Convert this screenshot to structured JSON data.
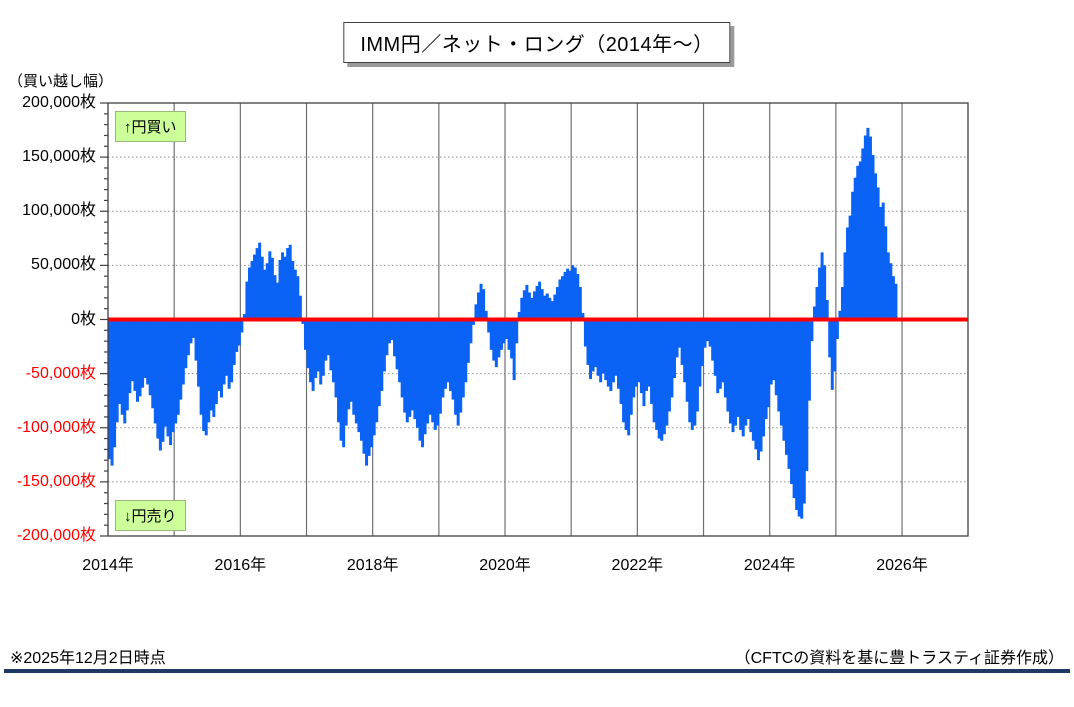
{
  "title": "IMM円／ネット・ロング（2014年～）",
  "y_axis": {
    "unit_label": "（買い越し幅）",
    "ticks": [
      {
        "value": 200000,
        "label": "200,000枚"
      },
      {
        "value": 150000,
        "label": "150,000枚"
      },
      {
        "value": 100000,
        "label": "100,000枚"
      },
      {
        "value": 50000,
        "label": "50,000枚"
      },
      {
        "value": 0,
        "label": "0枚"
      },
      {
        "value": -50000,
        "label": "-50,000枚"
      },
      {
        "value": -100000,
        "label": "-100,000枚"
      },
      {
        "value": -150000,
        "label": "-150,000枚"
      },
      {
        "value": -200000,
        "label": "-200,000枚"
      }
    ]
  },
  "x_axis": {
    "ticks": [
      {
        "year": 2014,
        "label": "2014年"
      },
      {
        "year": 2016,
        "label": "2016年"
      },
      {
        "year": 2018,
        "label": "2018年"
      },
      {
        "year": 2020,
        "label": "2020年"
      },
      {
        "year": 2022,
        "label": "2022年"
      },
      {
        "year": 2024,
        "label": "2024年"
      },
      {
        "year": 2026,
        "label": "2026年"
      }
    ]
  },
  "annotations": {
    "buy": "↑円買い",
    "sell": "↓円売り"
  },
  "footer": {
    "as_of": "※2025年12月2日時点",
    "source": "（CFTCの資料を基に豊トラスティ証券作成）"
  },
  "colors": {
    "bar": "#0b63f5",
    "zero_line": "#ff0000",
    "negative_tick_label": "#ff0000",
    "positive_tick_label": "#000000",
    "vertical_grid": "#707070",
    "horizontal_grid": "#909090",
    "plot_border": "#404040",
    "annotation_bg": "#ccff99",
    "footer_rule": "#1f3864"
  },
  "chart_data": {
    "type": "bar",
    "title": "IMM円／ネット・ロング（2014年～）",
    "xlabel": "",
    "ylabel": "（買い越し幅）",
    "unit": "枚",
    "ylim": [
      -200000,
      200000
    ],
    "ytick_step": 50000,
    "x_range_years": [
      2014,
      2027
    ],
    "grid": "horizontal dotted at ±50k/±100k/±150k, vertical solid at each year",
    "legend_position": "none",
    "zero_line": 0,
    "sampling": "biweekly estimates, 26 points per year, values in thousands of 枚 (contracts)",
    "year_order": [
      "2014",
      "2015",
      "2016",
      "2017",
      "2018",
      "2019",
      "2020",
      "2021",
      "2022",
      "2023",
      "2024",
      "2025"
    ],
    "values_thousands": {
      "2014": [
        -129,
        -135,
        -118,
        -95,
        -78,
        -88,
        -96,
        -84,
        -68,
        -57,
        -66,
        -76,
        -71,
        -63,
        -54,
        -60,
        -70,
        -82,
        -96,
        -110,
        -121,
        -113,
        -99,
        -108,
        -116,
        -104
      ],
      "2015": [
        -96,
        -88,
        -74,
        -60,
        -45,
        -33,
        -22,
        -17,
        -38,
        -62,
        -88,
        -103,
        -107,
        -95,
        -84,
        -90,
        -78,
        -66,
        -72,
        -60,
        -52,
        -64,
        -58,
        -42,
        -30,
        -24
      ],
      "2016": [
        -12,
        5,
        35,
        48,
        54,
        60,
        66,
        71,
        58,
        46,
        52,
        63,
        57,
        41,
        34,
        55,
        62,
        58,
        66,
        69,
        54,
        46,
        40,
        22,
        -4,
        -28
      ],
      "2017": [
        -45,
        -58,
        -66,
        -54,
        -48,
        -60,
        -52,
        -38,
        -33,
        -47,
        -58,
        -72,
        -95,
        -112,
        -118,
        -98,
        -83,
        -76,
        -88,
        -96,
        -104,
        -112,
        -124,
        -135,
        -126,
        -118
      ],
      "2018": [
        -107,
        -95,
        -80,
        -66,
        -48,
        -33,
        -22,
        -19,
        -34,
        -46,
        -58,
        -72,
        -86,
        -95,
        -90,
        -84,
        -92,
        -100,
        -112,
        -118,
        -106,
        -96,
        -88,
        -95,
        -102,
        -98
      ],
      "2019": [
        -87,
        -72,
        -64,
        -58,
        -66,
        -74,
        -88,
        -98,
        -86,
        -72,
        -58,
        -40,
        -22,
        -5,
        14,
        25,
        33,
        28,
        8,
        -12,
        -28,
        -38,
        -44,
        -35,
        -28,
        -22
      ],
      "2020": [
        -18,
        -28,
        -36,
        -56,
        -22,
        7,
        20,
        27,
        32,
        25,
        20,
        26,
        31,
        35,
        28,
        22,
        24,
        20,
        17,
        23,
        30,
        37,
        40,
        44,
        47,
        45
      ],
      "2021": [
        50,
        48,
        42,
        30,
        6,
        -25,
        -42,
        -55,
        -48,
        -44,
        -52,
        -58,
        -50,
        -56,
        -62,
        -66,
        -58,
        -52,
        -64,
        -78,
        -95,
        -102,
        -107,
        -88,
        -72,
        -62
      ],
      "2022": [
        -58,
        -68,
        -80,
        -66,
        -62,
        -78,
        -95,
        -102,
        -110,
        -112,
        -106,
        -98,
        -85,
        -72,
        -54,
        -35,
        -26,
        -42,
        -58,
        -76,
        -95,
        -102,
        -98,
        -85,
        -62,
        -43
      ],
      "2023": [
        -26,
        -20,
        -25,
        -38,
        -52,
        -68,
        -64,
        -58,
        -72,
        -85,
        -96,
        -104,
        -98,
        -90,
        -102,
        -108,
        -98,
        -92,
        -104,
        -112,
        -120,
        -130,
        -122,
        -108,
        -92,
        -81
      ],
      "2024": [
        -60,
        -56,
        -70,
        -85,
        -98,
        -112,
        -125,
        -138,
        -152,
        -165,
        -176,
        -182,
        -184,
        -170,
        -140,
        -75,
        -20,
        12,
        30,
        48,
        62,
        50,
        18,
        -35,
        -65,
        -48
      ],
      "2025": [
        -18,
        8,
        30,
        62,
        85,
        96,
        118,
        131,
        142,
        146,
        158,
        170,
        177,
        169,
        152,
        135,
        122,
        104,
        108,
        86,
        62,
        52,
        40,
        33
      ]
    },
    "last_value_thousands": 33,
    "as_of_label": "※2025年12月2日時点",
    "source_label": "（CFTCの資料を基に豊トラスティ証券作成）"
  }
}
